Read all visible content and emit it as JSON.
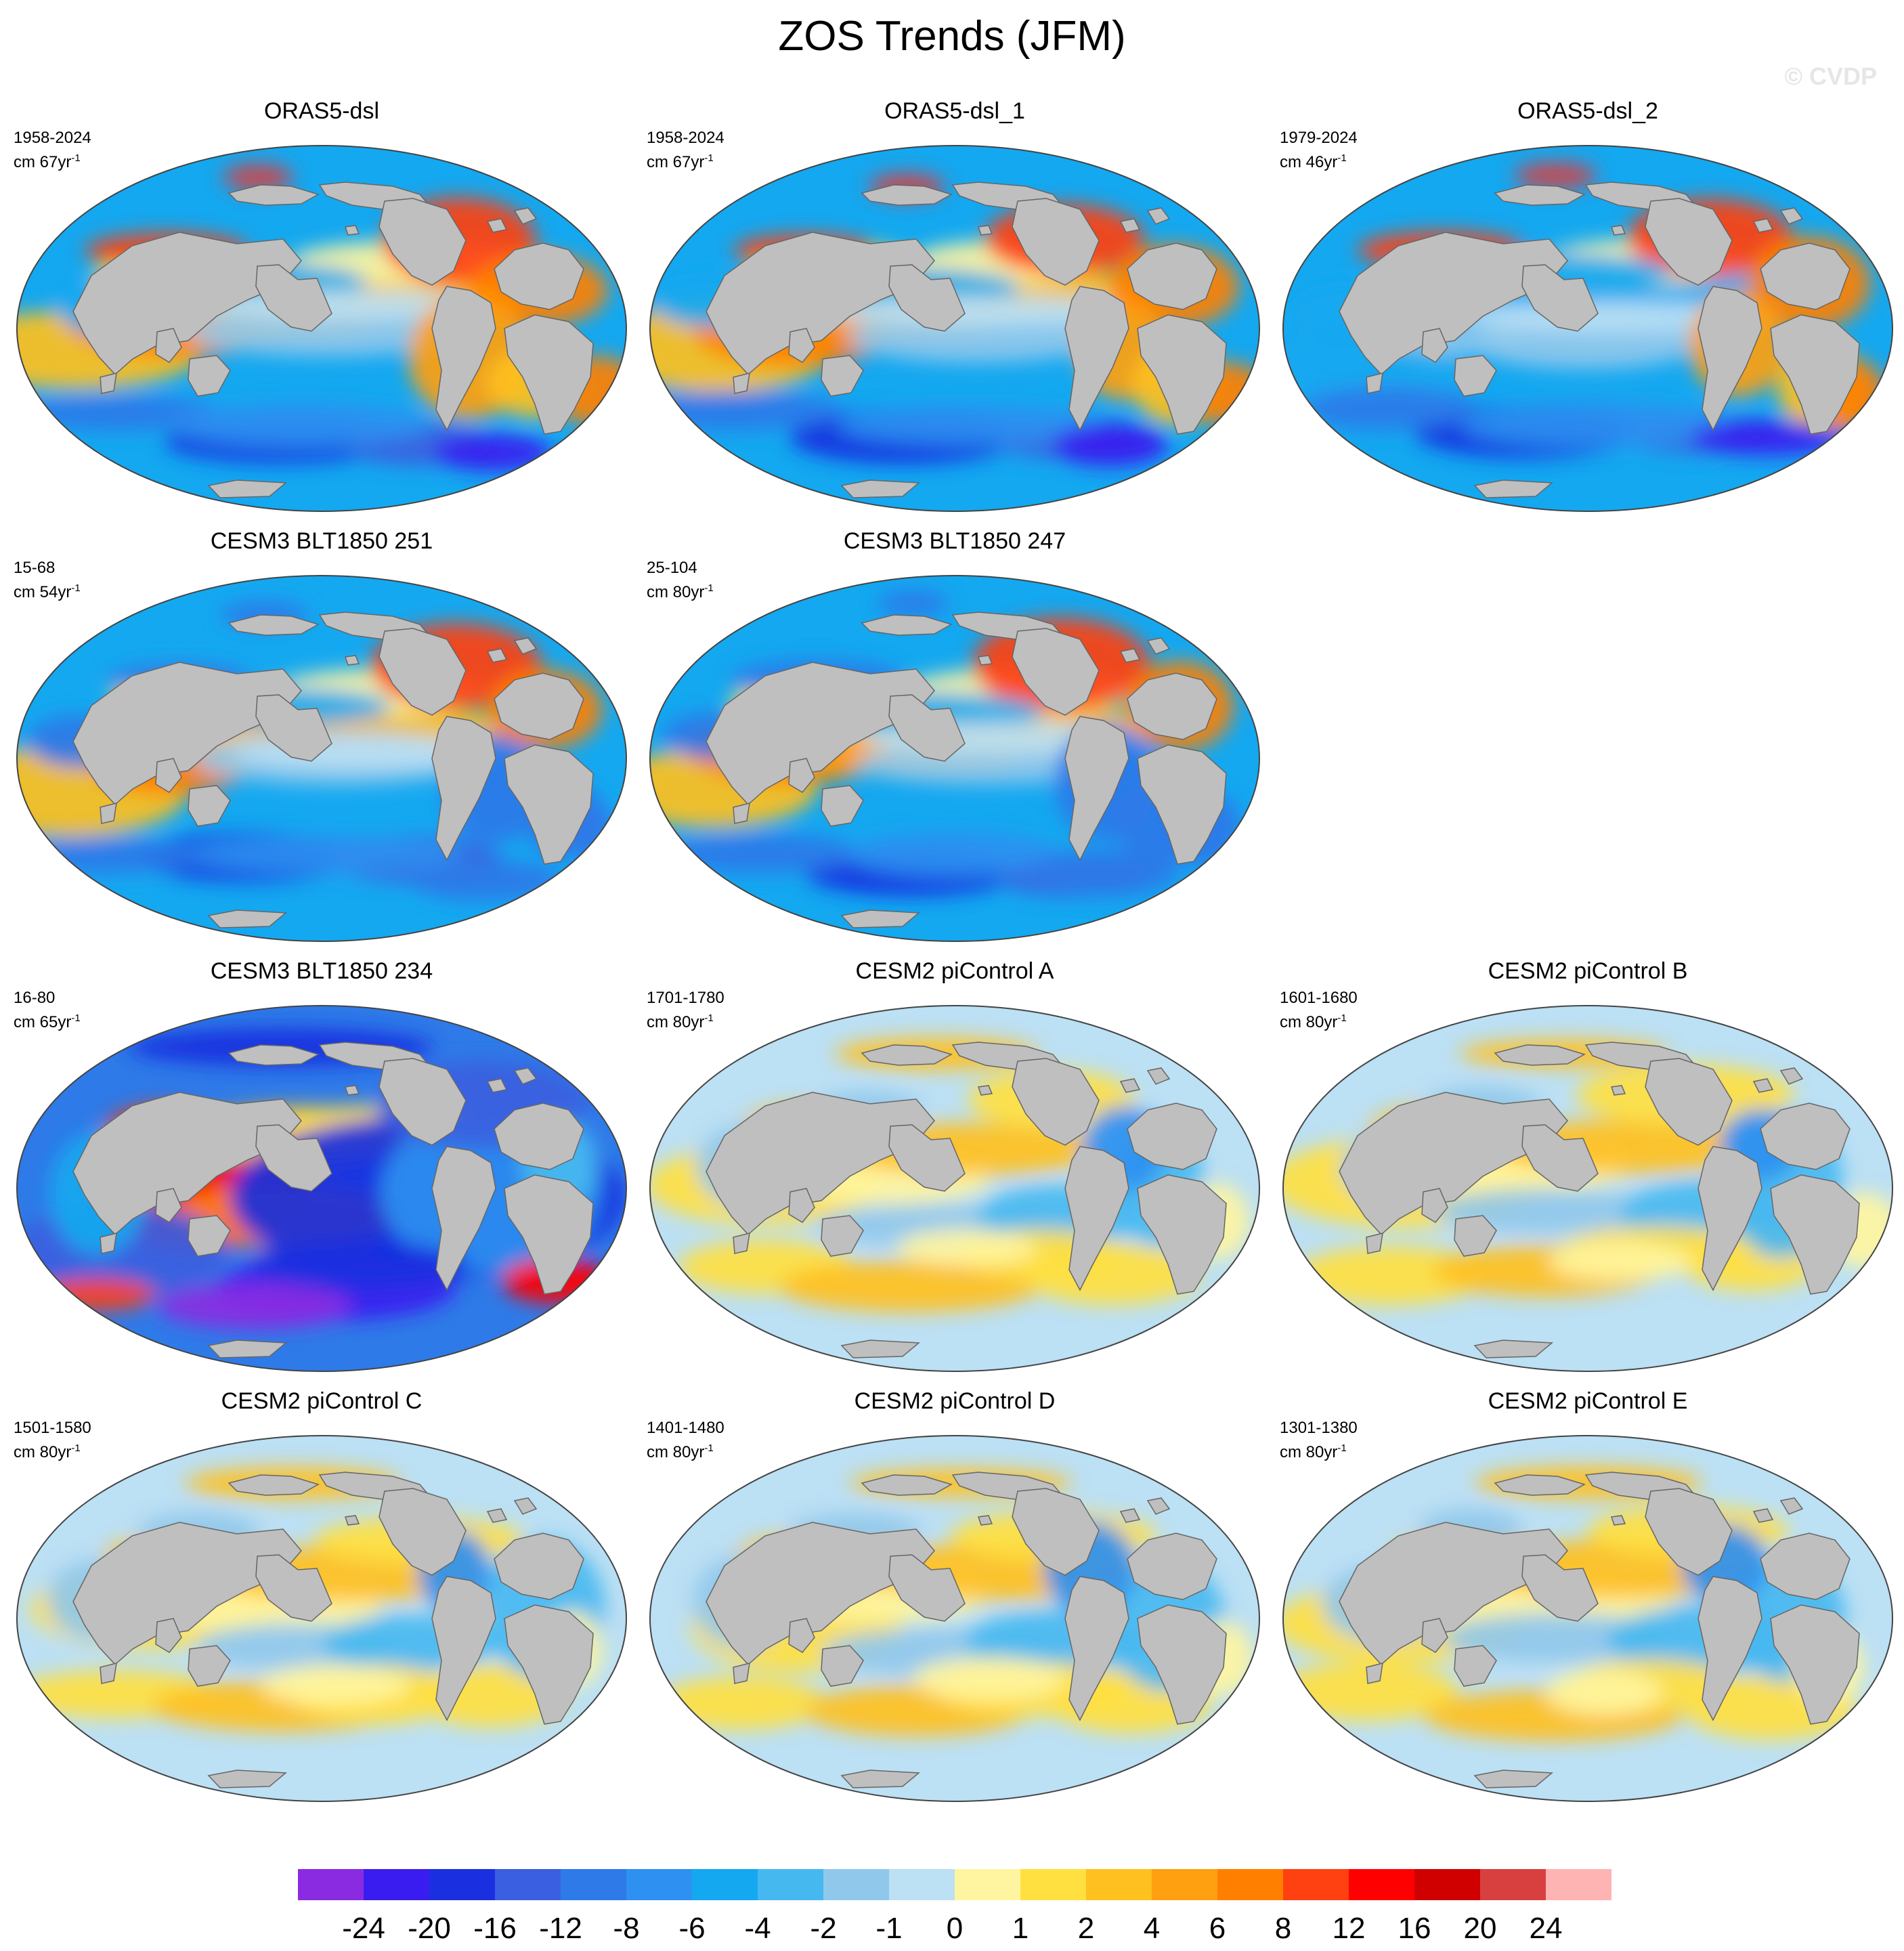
{
  "title": "ZOS Trends (JFM)",
  "watermark": "© CVDP",
  "colorbar": {
    "colors": [
      "#8a2be2",
      "#3a1cf0",
      "#1a30e0",
      "#3a5fe0",
      "#2e7ae8",
      "#2e90f0",
      "#14a8f0",
      "#46b8f0",
      "#90c8ec",
      "#bce0f4",
      "#fff5a0",
      "#ffe040",
      "#ffc020",
      "#ffa010",
      "#ff8000",
      "#ff4010",
      "#ff0000",
      "#d00000",
      "#d84040",
      "#ffb4b4"
    ],
    "labels": [
      "-24",
      "-20",
      "-16",
      "-12",
      "-8",
      "-6",
      "-4",
      "-2",
      "-1",
      "0",
      "1",
      "2",
      "4",
      "6",
      "8",
      "12",
      "16",
      "20",
      "24"
    ]
  },
  "panels": [
    {
      "id": "p1",
      "name": "ORAS5-dsl",
      "period": "1958-2024",
      "units": "cm 67yr",
      "exponent": "-1",
      "row": 0,
      "col": 0,
      "palette": "strong"
    },
    {
      "id": "p2",
      "name": "ORAS5-dsl_1",
      "period": "1958-2024",
      "units": "cm 67yr",
      "exponent": "-1",
      "row": 0,
      "col": 1,
      "palette": "strong"
    },
    {
      "id": "p3",
      "name": "ORAS5-dsl_2",
      "period": "1979-2024",
      "units": "cm 46yr",
      "exponent": "-1",
      "row": 0,
      "col": 2,
      "palette": "strong"
    },
    {
      "id": "p4",
      "name": "CESM3 BLT1850 251",
      "period": "15-68",
      "units": "cm 54yr",
      "exponent": "-1",
      "row": 1,
      "col": 0,
      "palette": "strong"
    },
    {
      "id": "p5",
      "name": "CESM3 BLT1850 247",
      "period": "25-104",
      "units": "cm 80yr",
      "exponent": "-1",
      "row": 1,
      "col": 1,
      "palette": "strong"
    },
    {
      "id": "p6",
      "name": "CESM3 BLT1850 234",
      "period": "16-80",
      "units": "cm 65yr",
      "exponent": "-1",
      "row": 2,
      "col": 0,
      "palette": "deep"
    },
    {
      "id": "p7",
      "name": "CESM2 piControl A",
      "period": "1701-1780",
      "units": "cm 80yr",
      "exponent": "-1",
      "row": 2,
      "col": 1,
      "palette": "mild"
    },
    {
      "id": "p8",
      "name": "CESM2 piControl B",
      "period": "1601-1680",
      "units": "cm 80yr",
      "exponent": "-1",
      "row": 2,
      "col": 2,
      "palette": "mild"
    },
    {
      "id": "p9",
      "name": "CESM2 piControl C",
      "period": "1501-1580",
      "units": "cm 80yr",
      "exponent": "-1",
      "row": 3,
      "col": 0,
      "palette": "mild"
    },
    {
      "id": "p10",
      "name": "CESM2 piControl D",
      "period": "1401-1480",
      "units": "cm 80yr",
      "exponent": "-1",
      "row": 3,
      "col": 1,
      "palette": "mild"
    },
    {
      "id": "p11",
      "name": "CESM2 piControl E",
      "period": "1301-1380",
      "units": "cm 80yr",
      "exponent": "-1",
      "row": 3,
      "col": 2,
      "palette": "mild"
    }
  ],
  "chart_data": {
    "type": "heatmap",
    "title": "ZOS Trends (JFM)",
    "variable": "ZOS trend",
    "units": "cm",
    "levels": [
      -24,
      -20,
      -16,
      -12,
      -8,
      -6,
      -4,
      -2,
      -1,
      0,
      1,
      2,
      4,
      6,
      8,
      12,
      16,
      20,
      24
    ],
    "maps": [
      {
        "name": "ORAS5-dsl",
        "period": "1958-2024"
      },
      {
        "name": "ORAS5-dsl_1",
        "period": "1958-2024"
      },
      {
        "name": "ORAS5-dsl_2",
        "period": "1979-2024"
      },
      {
        "name": "CESM3 BLT1850 251",
        "period": "15-68"
      },
      {
        "name": "CESM3 BLT1850 247",
        "period": "25-104"
      },
      {
        "name": "CESM3 BLT1850 234",
        "period": "16-80"
      },
      {
        "name": "CESM2 piControl A",
        "period": "1701-1780"
      },
      {
        "name": "CESM2 piControl B",
        "period": "1601-1680"
      },
      {
        "name": "CESM2 piControl C",
        "period": "1501-1580"
      },
      {
        "name": "CESM2 piControl D",
        "period": "1401-1480"
      },
      {
        "name": "CESM2 piControl E",
        "period": "1301-1380"
      }
    ]
  }
}
